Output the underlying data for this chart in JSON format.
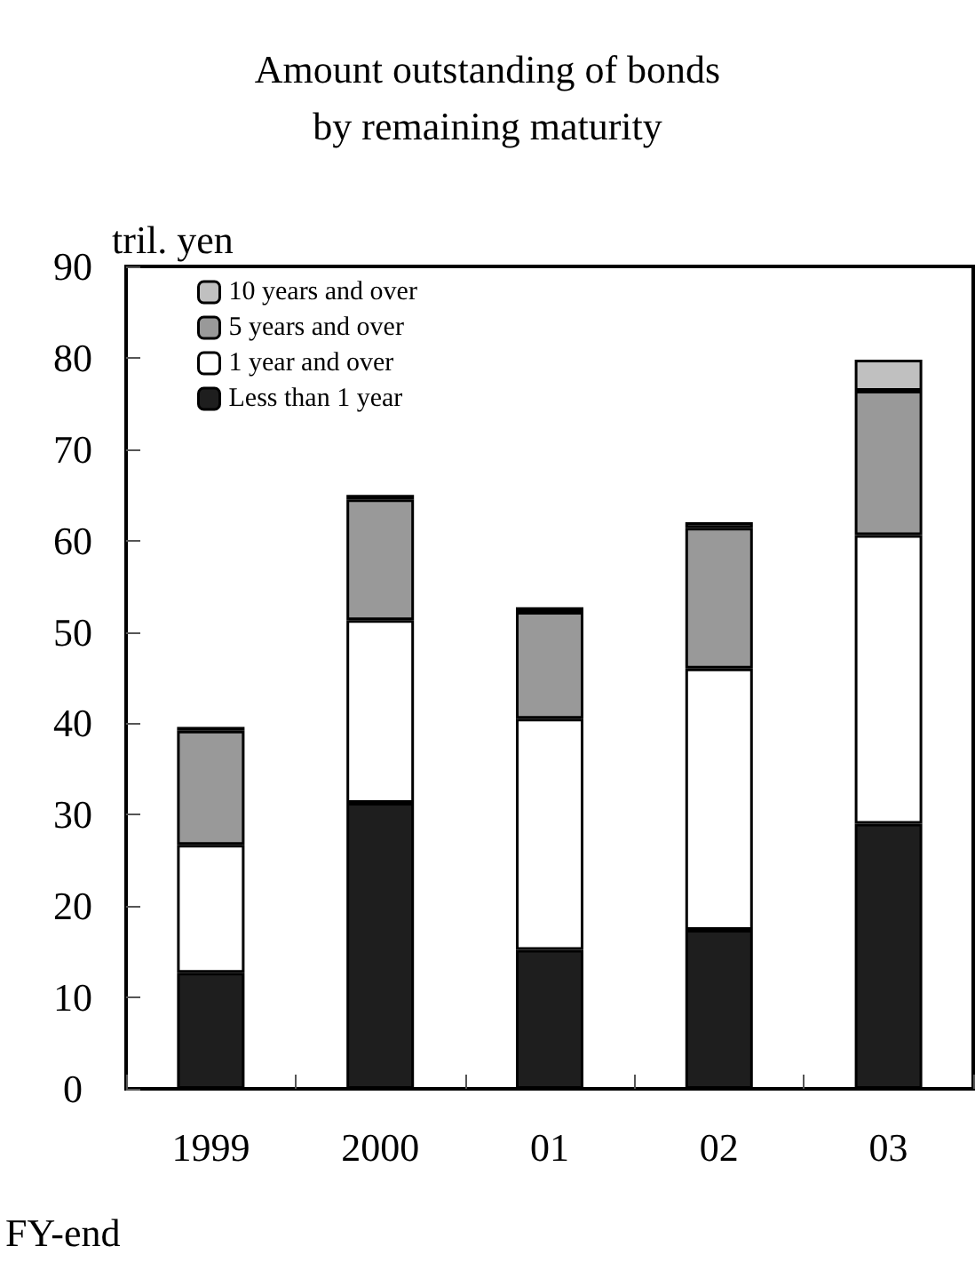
{
  "chart_data": {
    "type": "bar",
    "title": "Amount outstanding of bonds\nby remaining maturity",
    "ylabel": "tril. yen",
    "xlabel": "FY-end",
    "categories": [
      "1999",
      "2000",
      "01",
      "02",
      "03"
    ],
    "stacked": true,
    "series": [
      {
        "name": "Less than 1 year",
        "color": "#1e1e1e",
        "values": [
          12.7,
          31.3,
          15.2,
          17.4,
          29.0
        ]
      },
      {
        "name": "1 year and over",
        "color": "#ffffff",
        "values": [
          14.0,
          20.0,
          25.3,
          28.6,
          31.6
        ]
      },
      {
        "name": "5 years and over",
        "color": "#999999",
        "values": [
          12.5,
          13.2,
          11.7,
          15.4,
          15.8
        ]
      },
      {
        "name": "10 years and over",
        "color": "#c0c0c0",
        "values": [
          0.4,
          0.5,
          0.5,
          0.6,
          3.4
        ]
      }
    ],
    "ylim": [
      0,
      90
    ],
    "yticks": [
      0,
      10,
      20,
      30,
      40,
      50,
      60,
      70,
      80,
      90
    ],
    "grid": false,
    "legend": "top left"
  }
}
